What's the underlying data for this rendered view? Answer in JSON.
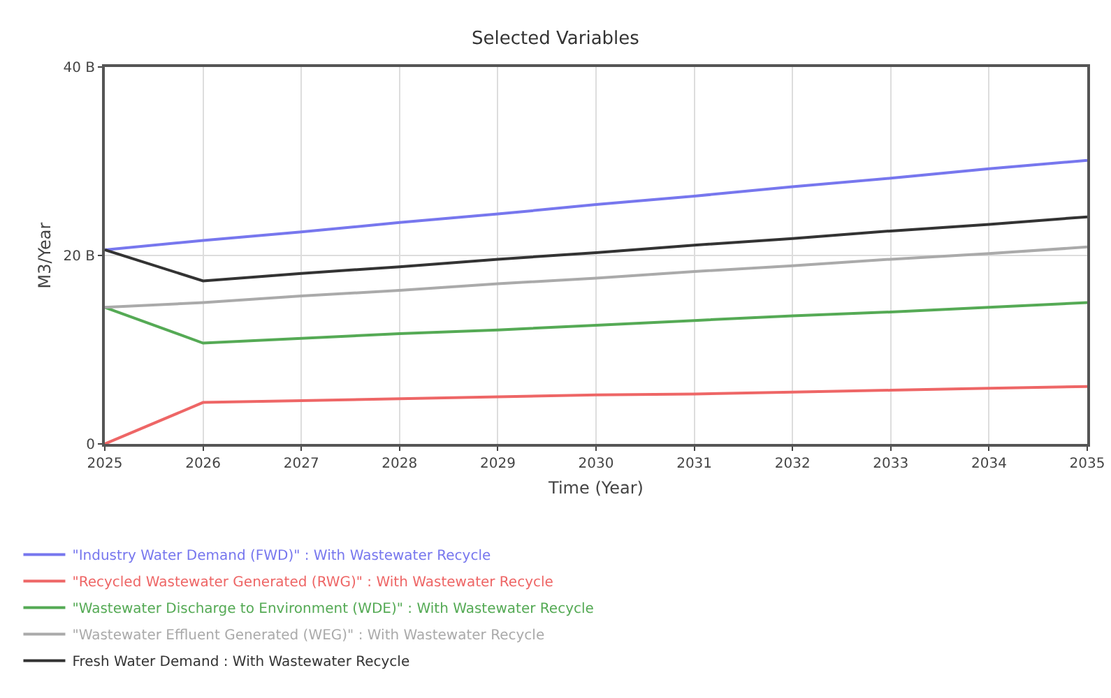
{
  "chart_data": {
    "type": "line",
    "title": "Selected Variables",
    "xlabel": "Time (Year)",
    "ylabel": "M3/Year",
    "x": [
      2025,
      2026,
      2027,
      2028,
      2029,
      2030,
      2031,
      2032,
      2033,
      2034,
      2035
    ],
    "xlim": [
      2025,
      2035
    ],
    "xticks": [
      2025,
      2026,
      2027,
      2028,
      2029,
      2030,
      2031,
      2032,
      2033,
      2034,
      2035
    ],
    "ylim": [
      0,
      40
    ],
    "yticks": [
      0,
      {
        "value": 20,
        "label": "20 B"
      },
      {
        "value": 40,
        "label": "40 B"
      }
    ],
    "grid": true,
    "legend": "bottom left",
    "marker": "none",
    "line_style": "solid",
    "series": [
      {
        "name": "\"Industry Water Demand (FWD)\" : With Wastewater Recycle",
        "color": "#7777ee",
        "values": [
          20.6,
          21.6,
          22.5,
          23.5,
          24.4,
          25.4,
          26.3,
          27.3,
          28.2,
          29.2,
          30.1
        ]
      },
      {
        "name": "\"Recycled Wastewater Generated (RWG)\" : With Wastewater Recycle",
        "color": "#ee6666",
        "values": [
          0,
          4.4,
          4.6,
          4.8,
          5.0,
          5.2,
          5.3,
          5.5,
          5.7,
          5.9,
          6.1
        ]
      },
      {
        "name": "\"Wastewater Discharge to Environment (WDE)\" : With Wastewater Recycle",
        "color": "#55aa55",
        "values": [
          14.5,
          10.7,
          11.2,
          11.7,
          12.1,
          12.6,
          13.1,
          13.6,
          14.0,
          14.5,
          15.0
        ]
      },
      {
        "name": "\"Wastewater Effluent Generated (WEG)\" : With Wastewater Recycle",
        "color": "#aaaaaa",
        "values": [
          14.5,
          15.0,
          15.7,
          16.3,
          17.0,
          17.6,
          18.3,
          18.9,
          19.6,
          20.2,
          20.9
        ]
      },
      {
        "name": "Fresh Water Demand : With Wastewater Recycle",
        "color": "#333333",
        "values": [
          20.6,
          17.3,
          18.1,
          18.8,
          19.6,
          20.3,
          21.1,
          21.8,
          22.6,
          23.3,
          24.1
        ]
      }
    ]
  }
}
